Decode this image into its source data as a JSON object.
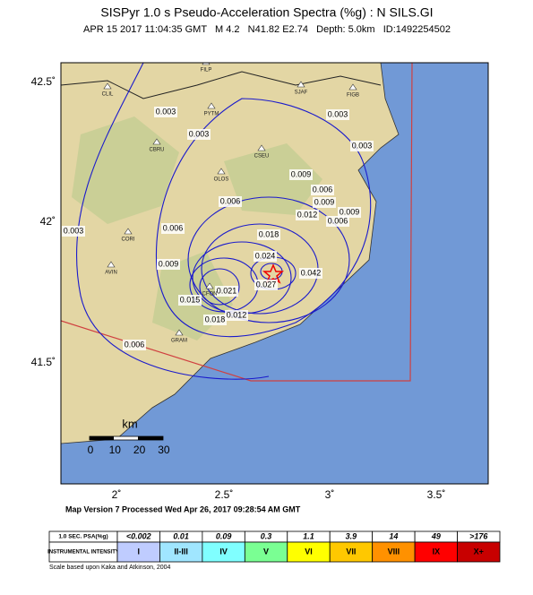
{
  "header": {
    "title": "SISPyr 1.0 s Pseudo-Acceleration Spectra (%g) : N SILS.GI",
    "subtitle": "APR 15 2017 11:04:35 GMT   M 4.2   N41.82 E2.74   Depth: 5.0km   ID:1492254502"
  },
  "map": {
    "x_labels": [
      "2˚",
      "2.5˚",
      "3˚",
      "3.5˚"
    ],
    "y_labels": [
      "42.5˚",
      "42˚",
      "41.5˚"
    ],
    "scale": {
      "unit": "km",
      "ticks": [
        "0",
        "10",
        "20",
        "30"
      ]
    },
    "contour_labels": [
      "0.003",
      "0.003",
      "0.003",
      "0.003",
      "0.003",
      "0.006",
      "0.006",
      "0.006",
      "0.006",
      "0.006",
      "0.009",
      "0.009",
      "0.009",
      "0.009",
      "0.012",
      "0.012",
      "0.015",
      "0.018",
      "0.021",
      "0.024",
      "0.027",
      "0.042",
      "0.018"
    ],
    "stations": [
      "FILP",
      "CLIL",
      "PYTM",
      "SJAF",
      "FIGB",
      "CBRU",
      "CSEU",
      "OLOS",
      "CORI",
      "AVIN",
      "CFON",
      "GRAM"
    ]
  },
  "footer": {
    "version": "Map Version 7 Processed Wed Apr 26, 2017 09:28:54 AM GMT",
    "legend": {
      "rows": [
        [
          "1.0 SEC. PSA(%g)",
          "<0.002",
          "0.01",
          "0.09",
          "0.3",
          "1.1",
          "3.9",
          "14",
          "49",
          ">176"
        ],
        [
          "INSTRUMENTAL INTENSITY",
          "I",
          "II-III",
          "IV",
          "V",
          "VI",
          "VII",
          "VIII",
          "IX",
          "X+"
        ]
      ]
    },
    "note": "Scale based upon Kaka and Atkinson, 2004"
  }
}
